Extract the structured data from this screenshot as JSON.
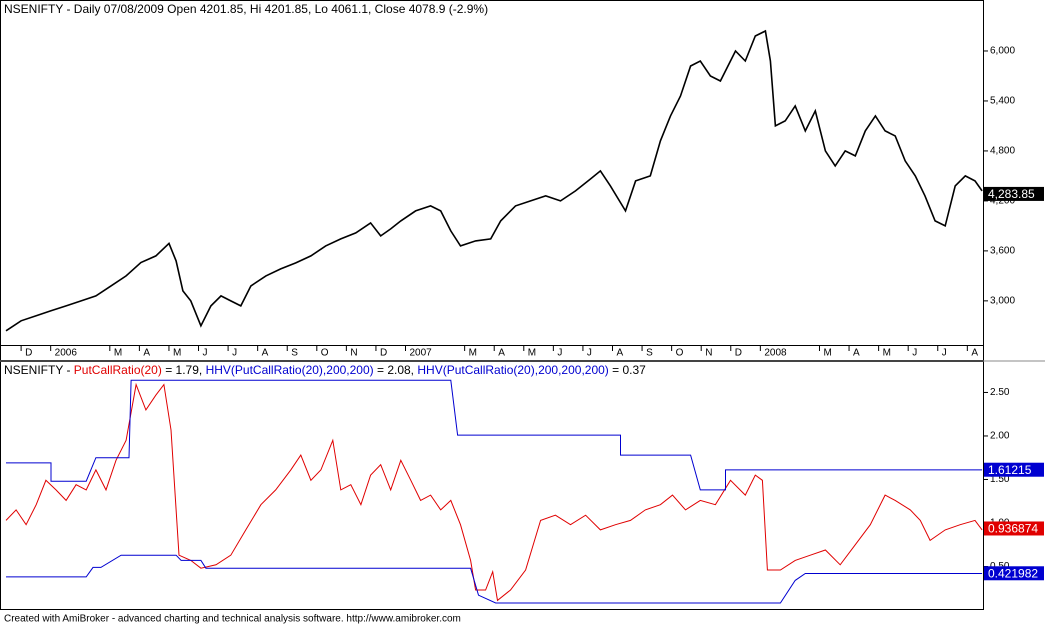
{
  "chart_data": [
    {
      "type": "line",
      "title": "NSENIFTY - Daily 07/08/2009 Open 4201.85, Hi 4201.85, Lo 4061.1, Close 4078.9 (-2.9%)",
      "color": "#000000",
      "x": [
        -0.51,
        0,
        0.51,
        1.01,
        1.52,
        2.03,
        2.53,
        3.04,
        3.55,
        4.05,
        4.56,
        5.0,
        5.24,
        5.47,
        5.74,
        6.08,
        6.42,
        6.76,
        7.09,
        7.43,
        7.77,
        8.28,
        8.78,
        9.29,
        9.8,
        10.3,
        10.81,
        11.32,
        11.82,
        12.16,
        12.5,
        12.84,
        13.34,
        13.85,
        14.19,
        14.53,
        14.86,
        15.37,
        15.88,
        16.22,
        16.72,
        17.23,
        17.74,
        18.24,
        18.75,
        19.26,
        19.59,
        19.93,
        20.44,
        20.78,
        21.28,
        21.62,
        21.96,
        22.3,
        22.64,
        22.97,
        23.31,
        23.65,
        24.16,
        24.49,
        24.83,
        25.17,
        25.34,
        25.51,
        25.84,
        26.18,
        26.52,
        26.86,
        27.2,
        27.53,
        27.87,
        28.21,
        28.55,
        28.89,
        29.22,
        29.56,
        29.9,
        30.24,
        30.57,
        30.91,
        31.25,
        31.59,
        31.93,
        32.26,
        32.5
      ],
      "values": [
        2640,
        2760,
        2820,
        2880,
        2940,
        3000,
        3060,
        3180,
        3300,
        3460,
        3540,
        3690,
        3480,
        3120,
        3000,
        2700,
        2940,
        3060,
        3000,
        2940,
        3180,
        3300,
        3384,
        3456,
        3540,
        3660,
        3744,
        3816,
        3936,
        3780,
        3864,
        3960,
        4080,
        4140,
        4080,
        3840,
        3660,
        3720,
        3744,
        3960,
        4140,
        4200,
        4260,
        4200,
        4320,
        4464,
        4560,
        4380,
        4080,
        4440,
        4500,
        4920,
        5220,
        5460,
        5820,
        5880,
        5700,
        5640,
        6000,
        5880,
        6180,
        6240,
        5880,
        5100,
        5160,
        5340,
        5040,
        5280,
        4800,
        4620,
        4800,
        4740,
        5040,
        5220,
        5040,
        4980,
        4680,
        4500,
        4260,
        3960,
        3900,
        4380,
        4500,
        4440,
        4320
      ],
      "xlim": [
        -0.68,
        32.53
      ],
      "xticks": [
        {
          "value": 0,
          "label": "D"
        },
        {
          "value": 1,
          "label": "2006"
        },
        {
          "value": 3,
          "label": "M"
        },
        {
          "value": 4,
          "label": "A"
        },
        {
          "value": 5,
          "label": "M"
        },
        {
          "value": 6,
          "label": "J"
        },
        {
          "value": 7,
          "label": "J"
        },
        {
          "value": 8,
          "label": "A"
        },
        {
          "value": 9,
          "label": "S"
        },
        {
          "value": 10,
          "label": "O"
        },
        {
          "value": 11,
          "label": "N"
        },
        {
          "value": 12,
          "label": "D"
        },
        {
          "value": 13,
          "label": "2007"
        },
        {
          "value": 15,
          "label": "M"
        },
        {
          "value": 16,
          "label": "A"
        },
        {
          "value": 17,
          "label": "M"
        },
        {
          "value": 18,
          "label": "J"
        },
        {
          "value": 19,
          "label": "J"
        },
        {
          "value": 20,
          "label": "A"
        },
        {
          "value": 21,
          "label": "S"
        },
        {
          "value": 22,
          "label": "O"
        },
        {
          "value": 23,
          "label": "N"
        },
        {
          "value": 24,
          "label": "D"
        },
        {
          "value": 25,
          "label": "2008"
        },
        {
          "value": 27,
          "label": "M"
        },
        {
          "value": 28,
          "label": "A"
        },
        {
          "value": 29,
          "label": "M"
        },
        {
          "value": 30,
          "label": "J"
        },
        {
          "value": 31,
          "label": "J"
        },
        {
          "value": 32,
          "label": "A"
        }
      ],
      "ylim": [
        2470,
        6600
      ],
      "yticks": [
        {
          "value": 3000,
          "label": "3,000"
        },
        {
          "value": 3600,
          "label": "3,600"
        },
        {
          "value": 4200,
          "label": "4,200"
        },
        {
          "value": 4800,
          "label": "4,800"
        },
        {
          "value": 5400,
          "label": "5,400"
        },
        {
          "value": 6000,
          "label": "6,000"
        }
      ],
      "badge": {
        "value": 4283.85,
        "label": "4,283.85"
      }
    },
    {
      "type": "line",
      "title_prefix": "NSENIFTY - ",
      "xlim": [
        -0.68,
        32.53
      ],
      "ylim": [
        0,
        2.85
      ],
      "yticks": [
        {
          "value": 0.5,
          "label": "0.50"
        },
        {
          "value": 1,
          "label": "1.00"
        },
        {
          "value": 1.5,
          "label": "1.50"
        },
        {
          "value": 2,
          "label": "2.00"
        },
        {
          "value": 2.5,
          "label": "2.50"
        }
      ],
      "series": [
        {
          "name": "PutCallRatio(20)",
          "readout": "= 1.79,",
          "color": "#e00000",
          "badge": 0.936874,
          "x": [
            -0.51,
            -0.17,
            0.17,
            0.51,
            0.84,
            1.18,
            1.52,
            1.86,
            2.2,
            2.53,
            2.87,
            3.21,
            3.55,
            3.89,
            4.22,
            4.56,
            4.83,
            5.07,
            5.34,
            5.74,
            6.08,
            6.59,
            7.09,
            7.6,
            8.11,
            8.61,
            9.12,
            9.46,
            9.8,
            10.14,
            10.54,
            10.81,
            11.15,
            11.49,
            11.82,
            12.16,
            12.5,
            12.84,
            13.18,
            13.51,
            13.85,
            14.19,
            14.53,
            14.86,
            15.2,
            15.37,
            15.71,
            15.95,
            16.11,
            16.55,
            17.06,
            17.57,
            18.07,
            18.58,
            19.09,
            19.59,
            20.1,
            20.61,
            21.11,
            21.62,
            22.03,
            22.47,
            22.97,
            23.48,
            23.99,
            24.49,
            24.83,
            25.07,
            25.24,
            25.68,
            26.18,
            26.69,
            27.2,
            27.7,
            28.21,
            28.72,
            29.22,
            29.56,
            30.07,
            30.41,
            30.74,
            31.25,
            31.76,
            32.26,
            32.5
          ],
          "values": [
            1.03,
            1.15,
            0.98,
            1.21,
            1.49,
            1.38,
            1.26,
            1.44,
            1.38,
            1.61,
            1.38,
            1.72,
            1.95,
            2.59,
            2.3,
            2.47,
            2.59,
            2.07,
            0.63,
            0.57,
            0.48,
            0.52,
            0.63,
            0.92,
            1.21,
            1.38,
            1.61,
            1.78,
            1.49,
            1.61,
            1.95,
            1.38,
            1.44,
            1.21,
            1.55,
            1.67,
            1.38,
            1.72,
            1.49,
            1.26,
            1.32,
            1.15,
            1.26,
            0.98,
            0.57,
            0.23,
            0.23,
            0.44,
            0.11,
            0.23,
            0.46,
            1.03,
            1.09,
            0.98,
            1.09,
            0.92,
            0.98,
            1.03,
            1.15,
            1.21,
            1.32,
            1.15,
            1.26,
            1.21,
            1.49,
            1.32,
            1.55,
            1.49,
            0.46,
            0.46,
            0.57,
            0.63,
            0.69,
            0.52,
            0.75,
            0.98,
            1.32,
            1.26,
            1.15,
            1.03,
            0.8,
            0.92,
            0.98,
            1.03,
            0.92
          ]
        },
        {
          "name": "HHV(PutCallRatio(20),200,200)",
          "readout": "= 2.08,",
          "color": "#0000d0",
          "badge": 1.61215,
          "x": [
            -0.51,
            1.01,
            1.01,
            2.2,
            2.53,
            3.65,
            3.72,
            14.53,
            14.76,
            20.27,
            20.27,
            22.64,
            22.97,
            23.82,
            23.82,
            32.5
          ],
          "values": [
            1.69,
            1.69,
            1.48,
            1.48,
            1.75,
            1.75,
            2.64,
            2.64,
            2.01,
            2.01,
            1.78,
            1.78,
            1.38,
            1.38,
            1.61,
            1.61
          ]
        },
        {
          "name": "HHV(PutCallRatio(20),200,200,200)",
          "readout": "= 0.37",
          "color": "#0000d0",
          "badge": 0.421982,
          "x": [
            -0.51,
            2.2,
            2.43,
            2.7,
            3.38,
            5.24,
            5.41,
            6.08,
            6.25,
            15.2,
            15.47,
            16.05,
            25.68,
            26.18,
            26.52,
            32.5
          ],
          "values": [
            0.38,
            0.38,
            0.49,
            0.49,
            0.63,
            0.63,
            0.57,
            0.57,
            0.48,
            0.48,
            0.17,
            0.08,
            0.08,
            0.34,
            0.42,
            0.42
          ]
        }
      ]
    }
  ],
  "footer": "Created with AmiBroker - advanced charting and technical analysis software. http://www.amibroker.com"
}
